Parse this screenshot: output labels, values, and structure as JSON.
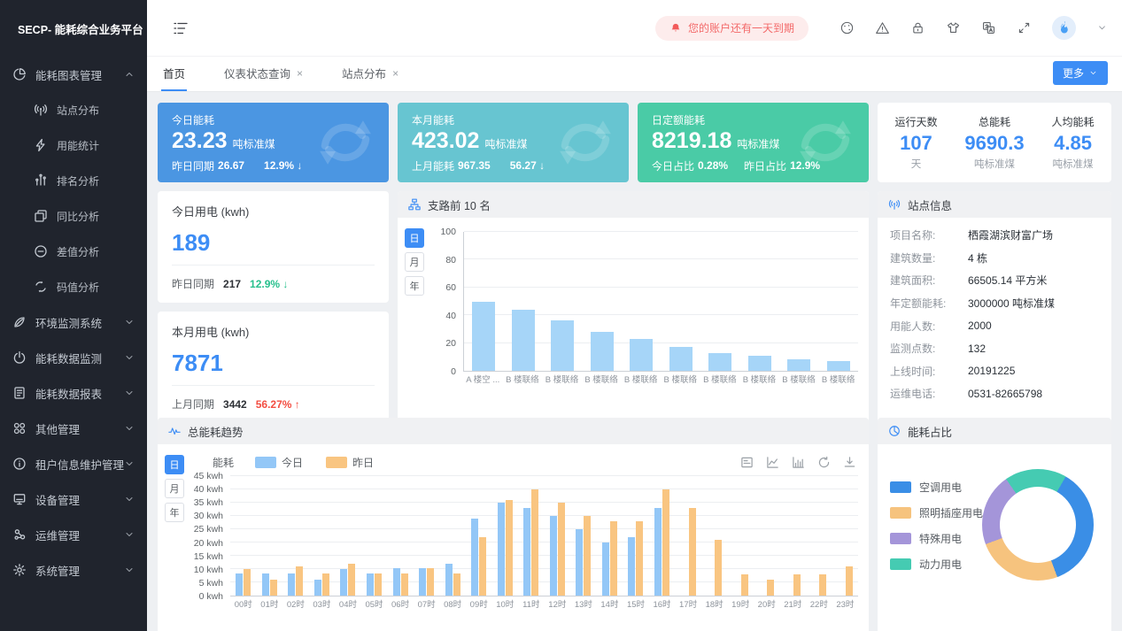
{
  "app": {
    "title": "SECP- 能耗综合业务平台"
  },
  "header": {
    "alert": "您的账户还有一天到期",
    "icons": [
      "theme-palette-icon",
      "warning-triangle-icon",
      "lock-icon",
      "skin-icon",
      "translate-icon",
      "fullscreen-icon"
    ]
  },
  "tabbar": {
    "tabs": [
      {
        "label": "首页",
        "closable": false,
        "active": true
      },
      {
        "label": "仪表状态查询",
        "closable": true,
        "active": false
      },
      {
        "label": "站点分布",
        "closable": true,
        "active": false
      }
    ],
    "more_label": "更多"
  },
  "sidebar": {
    "items": [
      {
        "label": "能耗图表管理",
        "icon": "pie-chart-icon",
        "expanded": true,
        "children": [
          {
            "label": "站点分布",
            "icon": "antenna-icon"
          },
          {
            "label": "用能统计",
            "icon": "lightning-icon"
          },
          {
            "label": "排名分析",
            "icon": "ranking-icon"
          },
          {
            "label": "同比分析",
            "icon": "compare-icon"
          },
          {
            "label": "差值分析",
            "icon": "minus-circle-icon"
          },
          {
            "label": "码值分析",
            "icon": "swap-icon"
          }
        ]
      },
      {
        "label": "环境监测系统",
        "icon": "leaf-icon"
      },
      {
        "label": "能耗数据监测",
        "icon": "power-gauge-icon"
      },
      {
        "label": "能耗数据报表",
        "icon": "report-icon"
      },
      {
        "label": "其他管理",
        "icon": "apps-icon"
      },
      {
        "label": "租户信息维护管理",
        "icon": "info-circle-icon"
      },
      {
        "label": "设备管理",
        "icon": "device-icon"
      },
      {
        "label": "运维管理",
        "icon": "ops-icon"
      },
      {
        "label": "系统管理",
        "icon": "gear-icon"
      }
    ]
  },
  "kpi_cards": [
    {
      "title": "今日能耗",
      "value": "23.23",
      "unit": "吨标准煤",
      "color": "#4b96e2",
      "parts": [
        {
          "label": "昨日同期",
          "value": "26.67"
        },
        {
          "label": "",
          "value": "12.9%",
          "arrow": "↓"
        }
      ]
    },
    {
      "title": "本月能耗",
      "value": "423.02",
      "unit": "吨标准煤",
      "color": "#67c5d1",
      "parts": [
        {
          "label": "上月能耗",
          "value": "967.35"
        },
        {
          "label": "",
          "value": "56.27",
          "arrow": "↓"
        }
      ]
    },
    {
      "title": "日定额能耗",
      "value": "8219.18",
      "unit": "吨标准煤",
      "color": "#4acba6",
      "parts": [
        {
          "label": "今日占比",
          "value": "0.28%"
        },
        {
          "label": "昨日占比",
          "value": "12.9%"
        }
      ]
    }
  ],
  "summary": [
    {
      "label": "运行天数",
      "value": "107",
      "unit": "天"
    },
    {
      "label": "总能耗",
      "value": "9690.3",
      "unit": "吨标准煤"
    },
    {
      "label": "人均能耗",
      "value": "4.85",
      "unit": "吨标准煤"
    }
  ],
  "usage_cards": [
    {
      "title": "今日用电 (kwh)",
      "value": "189",
      "compare_label": "昨日同期",
      "compare_value": "217",
      "delta": "12.9% ↓",
      "trend": "down"
    },
    {
      "title": "本月用电 (kwh)",
      "value": "7871",
      "compare_label": "上月同期",
      "compare_value": "3442",
      "delta": "56.27% ↑",
      "trend": "up"
    }
  ],
  "site_info": {
    "title": "站点信息",
    "rows": [
      {
        "label": "项目名称:",
        "value": "栖霞湖滨财富广场"
      },
      {
        "label": "建筑数量:",
        "value": "4 栋"
      },
      {
        "label": "建筑面积:",
        "value": "66505.14 平方米"
      },
      {
        "label": "年定额能耗:",
        "value": "3000000 吨标准煤"
      },
      {
        "label": "用能人数:",
        "value": "2000"
      },
      {
        "label": "监测点数:",
        "value": "132"
      },
      {
        "label": "上线时间:",
        "value": "20191225"
      },
      {
        "label": "运维电话:",
        "value": "0531-82665798"
      }
    ]
  },
  "chart_data": [
    {
      "id": "branch_top10",
      "type": "bar",
      "title": "支路前 10 名",
      "period_options": [
        "日",
        "月",
        "年"
      ],
      "active_period": "日",
      "categories": [
        "A 楼空 ...",
        "B 楼联络",
        "B 楼联络",
        "B 楼联络",
        "B 楼联络",
        "B 楼联络",
        "B 楼联络",
        "B 楼联络",
        "B 楼联络",
        "B 楼联络"
      ],
      "values": [
        50,
        44,
        36,
        28,
        23,
        17,
        13,
        11,
        8,
        7
      ],
      "ylim": [
        0,
        100
      ],
      "yticks": [
        0,
        20,
        40,
        60,
        80,
        100
      ],
      "bar_color": "#a6d5f8",
      "grid": true,
      "legend_position": "none"
    },
    {
      "id": "energy_trend",
      "type": "bar",
      "title": "总能耗趋势",
      "axis_name": "能耗",
      "period_options": [
        "日",
        "月",
        "年"
      ],
      "active_period": "日",
      "categories": [
        "00时",
        "01时",
        "02时",
        "03时",
        "04时",
        "05时",
        "06时",
        "07时",
        "08时",
        "09时",
        "10时",
        "11时",
        "12时",
        "13时",
        "14时",
        "15时",
        "16时",
        "17时",
        "18时",
        "19时",
        "20时",
        "21时",
        "22时",
        "23时"
      ],
      "series": [
        {
          "name": "今日",
          "color": "#93c7f7",
          "values": [
            8.5,
            8.5,
            8.5,
            6,
            10,
            8.5,
            10.5,
            10.5,
            12,
            29,
            35,
            33,
            30,
            25,
            20,
            22,
            33,
            0,
            0,
            0,
            0,
            0,
            0,
            0
          ]
        },
        {
          "name": "昨日",
          "color": "#f9c581",
          "values": [
            10,
            6,
            11,
            8.5,
            12,
            8.5,
            8.5,
            10.5,
            8.5,
            22,
            36,
            40,
            35,
            30,
            28,
            28,
            40,
            33,
            21,
            8,
            6,
            8,
            8,
            11
          ]
        }
      ],
      "ylim": [
        0,
        45
      ],
      "ytick_step": 5,
      "ytick_unit": " kwh",
      "grid": true,
      "legend_position": "top",
      "toolbar": [
        "data-view-icon",
        "line-chart-icon",
        "bar-chart-icon",
        "refresh-icon",
        "download-icon"
      ]
    },
    {
      "id": "energy_share",
      "type": "pie",
      "title": "能耗占比",
      "start_angle": 30,
      "legend_position": "left",
      "slices": [
        {
          "label": "空调用电",
          "value": 36,
          "color": "#3a8ee6"
        },
        {
          "label": "照明插座用电",
          "value": 25,
          "color": "#f6c37e"
        },
        {
          "label": "特殊用电",
          "value": 21,
          "color": "#a495d9"
        },
        {
          "label": "动力用电",
          "value": 18,
          "color": "#45cbb2"
        }
      ]
    }
  ],
  "colors": {
    "accent": "#3d8df5",
    "danger": "#f34e42",
    "success": "#27c08d",
    "sidebar_bg": "#20242d",
    "alert_bg": "#fdecec",
    "alert_text": "#f36a6a"
  }
}
